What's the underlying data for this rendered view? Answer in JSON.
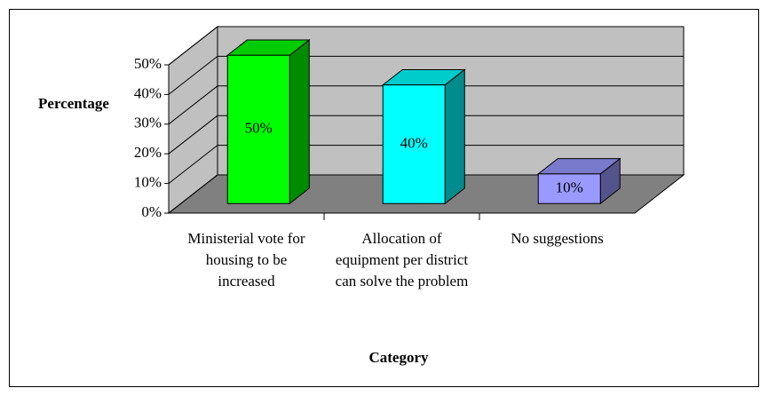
{
  "chart_data": {
    "type": "bar3d",
    "x_label": "Category",
    "y_label": "Percentage",
    "categories": [
      "Ministerial vote for housing to be increased",
      "Allocation of equipment per district can solve the problem",
      "No suggestions"
    ],
    "values": [
      50,
      40,
      10
    ],
    "value_labels": [
      "50%",
      "40%",
      "10%"
    ],
    "colors": [
      "#00ff00",
      "#00ffff",
      "#9999ff"
    ],
    "ylim": [
      0,
      50
    ],
    "yticks": [
      {
        "value": 0,
        "label": "0%"
      },
      {
        "value": 10,
        "label": "10%"
      },
      {
        "value": 20,
        "label": "20%"
      },
      {
        "value": 30,
        "label": "30%"
      },
      {
        "value": 40,
        "label": "40%"
      },
      {
        "value": 50,
        "label": "50%"
      }
    ],
    "grid": true
  }
}
